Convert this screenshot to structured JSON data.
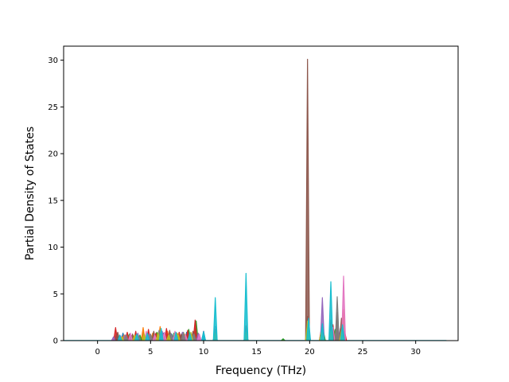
{
  "chart_data": {
    "type": "area",
    "xlabel": "Frequency (THz)",
    "ylabel": "Partial Density of States",
    "xlim": [
      -3.2,
      34
    ],
    "ylim": [
      0,
      31.5
    ],
    "xticks": [
      0,
      5,
      10,
      15,
      20,
      25,
      30
    ],
    "yticks": [
      0,
      5,
      10,
      15,
      20,
      25,
      30
    ],
    "xtick_labels": [
      "0",
      "5",
      "10",
      "15",
      "20",
      "25",
      "30"
    ],
    "ytick_labels": [
      "0",
      "5",
      "10",
      "15",
      "20",
      "25",
      "30"
    ],
    "x_range_data": [
      -3.2,
      32.9
    ],
    "grid": false,
    "legend": "none",
    "series": [
      {
        "color": "#1f77b4",
        "x": [
          1.8,
          2.4,
          3.2,
          4.3,
          5.0,
          6.2,
          7.0,
          8.4,
          9.3,
          10.0,
          11.1,
          14.0,
          19.8,
          21.2,
          22.0,
          22.6,
          23.2
        ],
        "y": [
          0.7,
          0.8,
          0.5,
          0.9,
          0.6,
          0.8,
          0.7,
          0.9,
          1.2,
          1.0,
          1.5,
          1.2,
          1.0,
          0.9,
          1.1,
          1.2,
          0.8
        ]
      },
      {
        "color": "#ff7f0e",
        "x": [
          2.5,
          3.4,
          4.3,
          5.2,
          5.9,
          6.6,
          7.5,
          8.2,
          9.4,
          11.1,
          14.0,
          19.8,
          21.2,
          22.1,
          23.2
        ],
        "y": [
          0.6,
          0.5,
          1.4,
          0.8,
          1.5,
          1.0,
          0.8,
          0.7,
          0.8,
          1.0,
          1.3,
          1.2,
          1.1,
          1.2,
          3.3
        ]
      },
      {
        "color": "#2ca02c",
        "x": [
          2.0,
          3.0,
          4.0,
          5.6,
          6.4,
          7.2,
          8.6,
          9.3,
          11.1,
          14.0,
          17.5,
          19.8,
          21.3,
          22.4,
          23.1
        ],
        "y": [
          0.5,
          0.7,
          0.6,
          0.9,
          0.7,
          0.8,
          1.2,
          2.1,
          1.0,
          1.2,
          0.2,
          1.4,
          1.0,
          1.2,
          0.9
        ]
      },
      {
        "color": "#d62728",
        "x": [
          1.7,
          2.8,
          3.6,
          4.8,
          5.5,
          6.5,
          7.7,
          8.5,
          9.2,
          11.1,
          14.0,
          19.8,
          21.1,
          22.2,
          23.3
        ],
        "y": [
          1.4,
          0.9,
          1.0,
          1.2,
          0.8,
          1.3,
          0.9,
          1.1,
          2.2,
          1.2,
          1.6,
          2.6,
          1.2,
          1.7,
          1.0
        ]
      },
      {
        "color": "#9467bd",
        "x": [
          1.5,
          2.6,
          3.8,
          4.9,
          6.1,
          7.0,
          8.0,
          9.5,
          11.1,
          14.0,
          19.9,
          21.2,
          22.0,
          22.9
        ],
        "y": [
          0.4,
          0.6,
          0.8,
          0.7,
          1.0,
          0.6,
          0.9,
          0.8,
          1.1,
          1.0,
          1.5,
          4.6,
          1.4,
          1.3
        ]
      },
      {
        "color": "#8c564b",
        "x": [
          1.9,
          3.3,
          4.5,
          5.3,
          6.8,
          7.9,
          9.0,
          11.1,
          14.0,
          19.8,
          21.2,
          22.0,
          22.6,
          23.0
        ],
        "y": [
          0.9,
          0.7,
          0.5,
          1.0,
          1.1,
          0.7,
          1.0,
          1.3,
          1.4,
          30.1,
          1.6,
          2.2,
          3.0,
          2.4
        ]
      },
      {
        "color": "#e377c2",
        "x": [
          2.2,
          3.1,
          4.6,
          5.4,
          6.3,
          7.3,
          8.3,
          9.6,
          11.1,
          14.0,
          19.8,
          21.2,
          22.2,
          23.2
        ],
        "y": [
          0.5,
          0.8,
          1.0,
          0.6,
          0.9,
          1.0,
          0.6,
          0.7,
          1.4,
          1.1,
          1.2,
          1.1,
          1.4,
          6.9
        ]
      },
      {
        "color": "#7f7f7f",
        "x": [
          2.7,
          3.9,
          5.0,
          5.8,
          6.9,
          8.1,
          9.1,
          11.1,
          14.0,
          19.8,
          21.2,
          22.1,
          22.6,
          23.1
        ],
        "y": [
          0.6,
          0.5,
          0.7,
          1.1,
          0.8,
          0.9,
          0.7,
          1.2,
          1.2,
          1.3,
          1.3,
          1.6,
          4.7,
          1.5
        ]
      },
      {
        "color": "#bcbd22",
        "x": [
          2.3,
          3.5,
          4.4,
          5.7,
          6.7,
          7.6,
          8.8,
          11.1,
          14.0,
          19.8,
          21.1,
          22.0,
          23.0
        ],
        "y": [
          0.4,
          0.6,
          0.7,
          0.8,
          0.6,
          0.7,
          0.9,
          0.8,
          0.9,
          2.1,
          0.9,
          1.0,
          1.1
        ]
      },
      {
        "color": "#17becf",
        "x": [
          2.1,
          3.7,
          4.7,
          6.0,
          7.4,
          8.7,
          10.0,
          11.1,
          14.0,
          19.9,
          21.2,
          22.0,
          23.1
        ],
        "y": [
          0.6,
          0.7,
          0.8,
          1.3,
          0.9,
          0.8,
          0.9,
          4.6,
          7.2,
          2.4,
          1.8,
          6.3,
          1.7
        ]
      }
    ]
  }
}
